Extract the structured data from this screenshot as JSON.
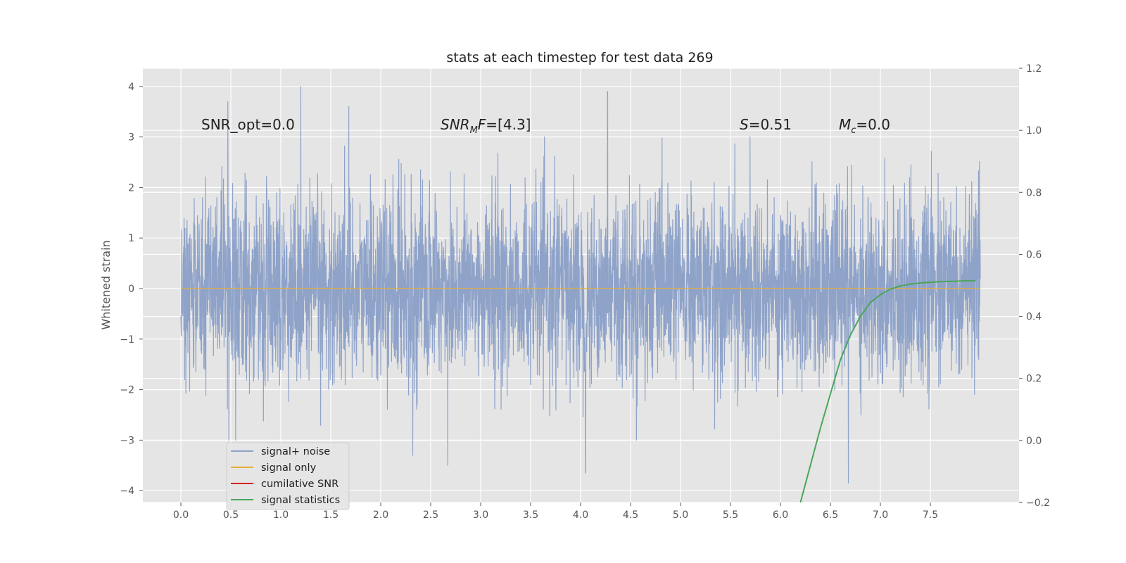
{
  "chart_data": {
    "type": "line",
    "title": "stats at each timestep for test data 269",
    "xlabel": "",
    "ylabel": "Whitened strain",
    "y2label": "",
    "xlim": [
      -0.4,
      8.4
    ],
    "ylim": [
      -4.25,
      4.4
    ],
    "y2lim": [
      -0.2,
      1.2
    ],
    "xticks": [
      "0.0",
      "0.5",
      "1.0",
      "1.5",
      "2.0",
      "2.5",
      "3.0",
      "3.5",
      "4.0",
      "4.5",
      "5.0",
      "5.5",
      "6.0",
      "6.5",
      "7.0",
      "7.5"
    ],
    "yticks": [
      "4",
      "3",
      "2",
      "1",
      "0",
      "−1",
      "−2",
      "−3",
      "−4"
    ],
    "y2ticks": [
      "1.2",
      "1.0",
      "0.8",
      "0.6",
      "0.4",
      "0.2",
      "0.0",
      "−0.2"
    ],
    "grid": true,
    "legend_position": "lower-left",
    "annotations": {
      "snr_opt": "SNR_opt=0.0",
      "snr_mf_main": "SNR",
      "snr_mf_sub": "M",
      "snr_mf_rest": "F",
      "snr_mf_value": "=[4.3]",
      "s_symbol": "S",
      "s_value": "=0.51",
      "mc_symbol": "M",
      "mc_sub": "c",
      "mc_value": "=0.0"
    },
    "series": [
      {
        "name": "signal+ noise",
        "color": "#8fa3c9",
        "axis": "left",
        "x_range": [
          0.0,
          8.0
        ],
        "description_level": "white noise, std ~0.9",
        "peaks": [
          [
            0.47,
            3.7
          ],
          [
            1.2,
            4.0
          ],
          [
            1.68,
            3.6
          ],
          [
            4.27,
            3.9
          ],
          [
            0.48,
            -3.0
          ],
          [
            2.32,
            -3.3
          ],
          [
            2.67,
            -3.5
          ],
          [
            4.05,
            -3.65
          ],
          [
            6.68,
            -3.85
          ]
        ]
      },
      {
        "name": "signal only",
        "color": "#e5ae38",
        "axis": "left",
        "x": [
          0.0,
          8.0
        ],
        "y": [
          0.0,
          0.0
        ]
      },
      {
        "name": "cumilative SNR",
        "color": "#d62728",
        "axis": "right",
        "x": [],
        "y": []
      },
      {
        "name": "signal statistics",
        "color": "#4aa55a",
        "axis": "right",
        "x": [
          6.2,
          6.3,
          6.4,
          6.5,
          6.6,
          6.7,
          6.8,
          6.9,
          7.0,
          7.1,
          7.2,
          7.3,
          7.4,
          7.5,
          7.6,
          7.7,
          7.8,
          7.9,
          7.95
        ],
        "y": [
          -0.2,
          -0.08,
          0.04,
          0.15,
          0.26,
          0.34,
          0.4,
          0.445,
          0.47,
          0.488,
          0.498,
          0.504,
          0.508,
          0.51,
          0.512,
          0.513,
          0.514,
          0.515,
          0.515
        ]
      }
    ]
  }
}
